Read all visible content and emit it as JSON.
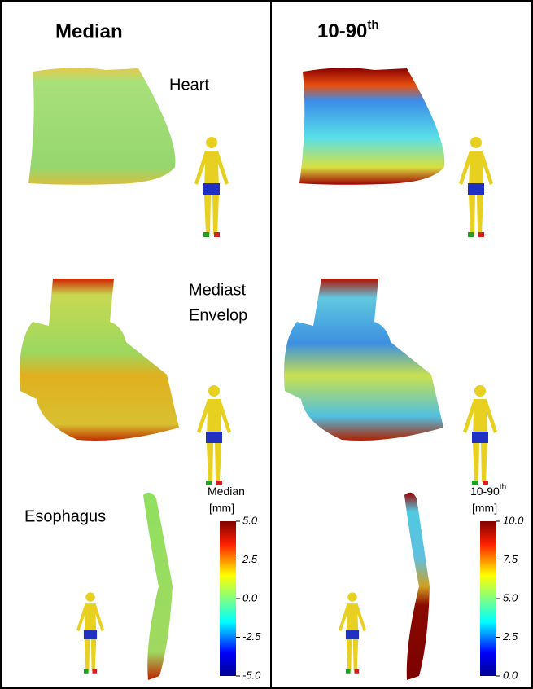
{
  "columns": [
    {
      "title": "Median"
    },
    {
      "title": "10-90",
      "sup": "th"
    }
  ],
  "rows": [
    {
      "label": [
        "Heart"
      ]
    },
    {
      "label": [
        "Mediast",
        "Envelop"
      ]
    },
    {
      "label": [
        "Esophagus"
      ]
    }
  ],
  "colorbars": [
    {
      "title": "Median",
      "title_sup": null,
      "unit": "[mm]",
      "range": [
        -5,
        5
      ],
      "ticks": [
        {
          "value": 5,
          "label": "5.0"
        },
        {
          "value": 2.5,
          "label": "2.5"
        },
        {
          "value": 0,
          "label": "0.0"
        },
        {
          "value": -2.5,
          "label": "-2.5"
        },
        {
          "value": -5,
          "label": "-5.0"
        }
      ]
    },
    {
      "title": "10-90",
      "title_sup": "th",
      "unit": "[mm]",
      "range": [
        0,
        10
      ],
      "ticks": [
        {
          "value": 10,
          "label": "10.0"
        },
        {
          "value": 7.5,
          "label": "7.5"
        },
        {
          "value": 5,
          "label": "5.0"
        },
        {
          "value": 2.5,
          "label": "2.5"
        },
        {
          "value": 0,
          "label": "0.0"
        }
      ]
    }
  ]
}
